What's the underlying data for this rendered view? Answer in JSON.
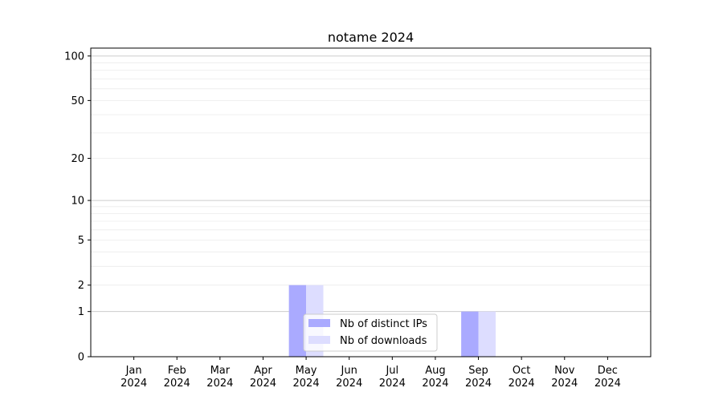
{
  "chart_data": {
    "type": "bar",
    "title": "notame 2024",
    "xlabel": "",
    "ylabel": "",
    "y_scale": "log(1+y)",
    "ylim": [
      0,
      113
    ],
    "categories": [
      "Jan\n2024",
      "Feb\n2024",
      "Mar\n2024",
      "Apr\n2024",
      "May\n2024",
      "Jun\n2024",
      "Jul\n2024",
      "Aug\n2024",
      "Sep\n2024",
      "Oct\n2024",
      "Nov\n2024",
      "Dec\n2024"
    ],
    "y_ticks": [
      0,
      1,
      2,
      5,
      10,
      20,
      50,
      100
    ],
    "grid": true,
    "legend_position": "lower-center",
    "series": [
      {
        "name": "Nb of distinct IPs",
        "color": "#aaaaff",
        "values": [
          0,
          0,
          0,
          0,
          2,
          0,
          0,
          0,
          1,
          0,
          0,
          0
        ]
      },
      {
        "name": "Nb of downloads",
        "color": "#ddddff",
        "values": [
          0,
          0,
          0,
          0,
          2,
          0,
          0,
          0,
          1,
          0,
          0,
          0
        ]
      }
    ]
  }
}
